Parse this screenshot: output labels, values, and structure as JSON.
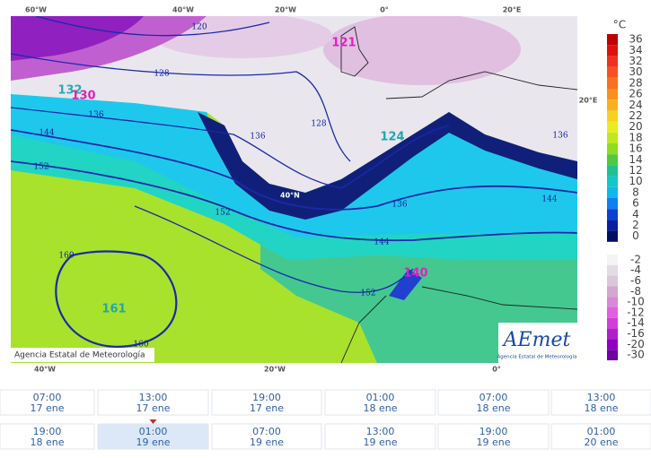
{
  "map": {
    "graticule_top": [
      "60°W",
      "40°W",
      "20°W",
      "0°",
      "20°E"
    ],
    "graticule_bottom": [
      "40°W",
      "20°W",
      "0°"
    ],
    "graticule_right": "20°E",
    "latitude_label": "40°N",
    "contour_labels": [
      "120",
      "128",
      "128",
      "136",
      "136",
      "144",
      "152",
      "152",
      "144",
      "136",
      "152",
      "160",
      "160",
      "128",
      "144",
      "136"
    ],
    "centers": [
      {
        "label": "121",
        "color": "#e020c0"
      },
      {
        "label": "132",
        "color": "#20b0b0"
      },
      {
        "label": "130",
        "color": "#e020c0"
      },
      {
        "label": "124",
        "color": "#20a8a8"
      },
      {
        "label": "140",
        "color": "#e020c0"
      },
      {
        "label": "161",
        "color": "#20a8a8"
      }
    ],
    "credit": "Agencia Estatal de Meteorología",
    "logo": {
      "name": "AEmet",
      "subtitle": "Agencia Estatal de Meteorología"
    }
  },
  "legend": {
    "unit": "°C",
    "positive": {
      "labels": [
        "36",
        "34",
        "32",
        "30",
        "28",
        "26",
        "24",
        "22",
        "20",
        "18",
        "16",
        "14",
        "12",
        "10",
        "8",
        "6",
        "4",
        "2",
        "0"
      ],
      "colors": [
        "#c00000",
        "#e01010",
        "#f03020",
        "#f85020",
        "#f87020",
        "#f89020",
        "#f8b020",
        "#f8d020",
        "#e8ec20",
        "#c0e820",
        "#90dc20",
        "#50c840",
        "#20c090",
        "#10c8c8",
        "#10b8e8",
        "#1080f0",
        "#1040d0",
        "#0820a0",
        "#001060"
      ]
    },
    "negative": {
      "labels": [
        "-2",
        "-4",
        "-6",
        "-8",
        "-10",
        "-12",
        "-14",
        "-16",
        "-20",
        "-30"
      ],
      "colors": [
        "#f4f4f4",
        "#e4dce4",
        "#d8c8d8",
        "#d0a8d0",
        "#d888d8",
        "#e060e0",
        "#d040d8",
        "#b020c8",
        "#9000c0",
        "#7000a0"
      ]
    }
  },
  "timeline": {
    "rows": [
      [
        {
          "time": "07:00",
          "date": "17 ene"
        },
        {
          "time": "13:00",
          "date": "17 ene"
        },
        {
          "time": "19:00",
          "date": "17 ene"
        },
        {
          "time": "01:00",
          "date": "18 ene"
        },
        {
          "time": "07:00",
          "date": "18 ene"
        },
        {
          "time": "13:00",
          "date": "18 ene"
        }
      ],
      [
        {
          "time": "19:00",
          "date": "18 ene"
        },
        {
          "time": "01:00",
          "date": "19 ene"
        },
        {
          "time": "07:00",
          "date": "19 ene"
        },
        {
          "time": "13:00",
          "date": "19 ene"
        },
        {
          "time": "19:00",
          "date": "19 ene"
        },
        {
          "time": "01:00",
          "date": "20 ene"
        }
      ]
    ]
  }
}
